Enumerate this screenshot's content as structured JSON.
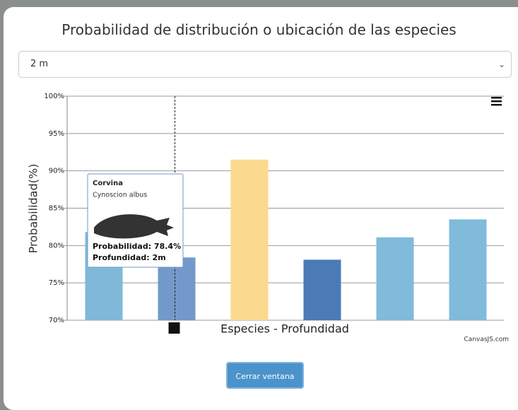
{
  "modal": {
    "select": "2 m",
    "button": "Cerrar ventana"
  },
  "chart_data": {
    "type": "bar",
    "title": "Probabilidad de distribución o ubicación de las especies",
    "x_label": "Especies - Profundidad",
    "y_label": "Probabilidad(%)",
    "credit": "CanvasJS.com",
    "categories": [
      null,
      null,
      null,
      null,
      null,
      null
    ],
    "values": [
      81.8,
      78.4,
      91.5,
      78.1,
      81.1,
      83.5
    ],
    "colors": [
      "#7fb8d9",
      "#7299c9",
      "#fbd98e",
      "#4a7bb6",
      "#80bbdc",
      "#80bbdc"
    ],
    "ylim": [
      70,
      100
    ],
    "yticks": [
      {
        "value": 70,
        "label": "70%"
      },
      {
        "value": 75,
        "label": "75%"
      },
      {
        "value": 80,
        "label": "80%"
      },
      {
        "value": 85,
        "label": "85%"
      },
      {
        "value": 90,
        "label": "90%"
      },
      {
        "value": 95,
        "label": "95%"
      },
      {
        "value": 100,
        "label": "100%"
      }
    ],
    "grid": true,
    "tooltip": {
      "name": "Corvina",
      "species": "Cynoscion albus",
      "probability": "Probabilidad: 78.4%",
      "depth": "Profundidad: 2m"
    }
  }
}
